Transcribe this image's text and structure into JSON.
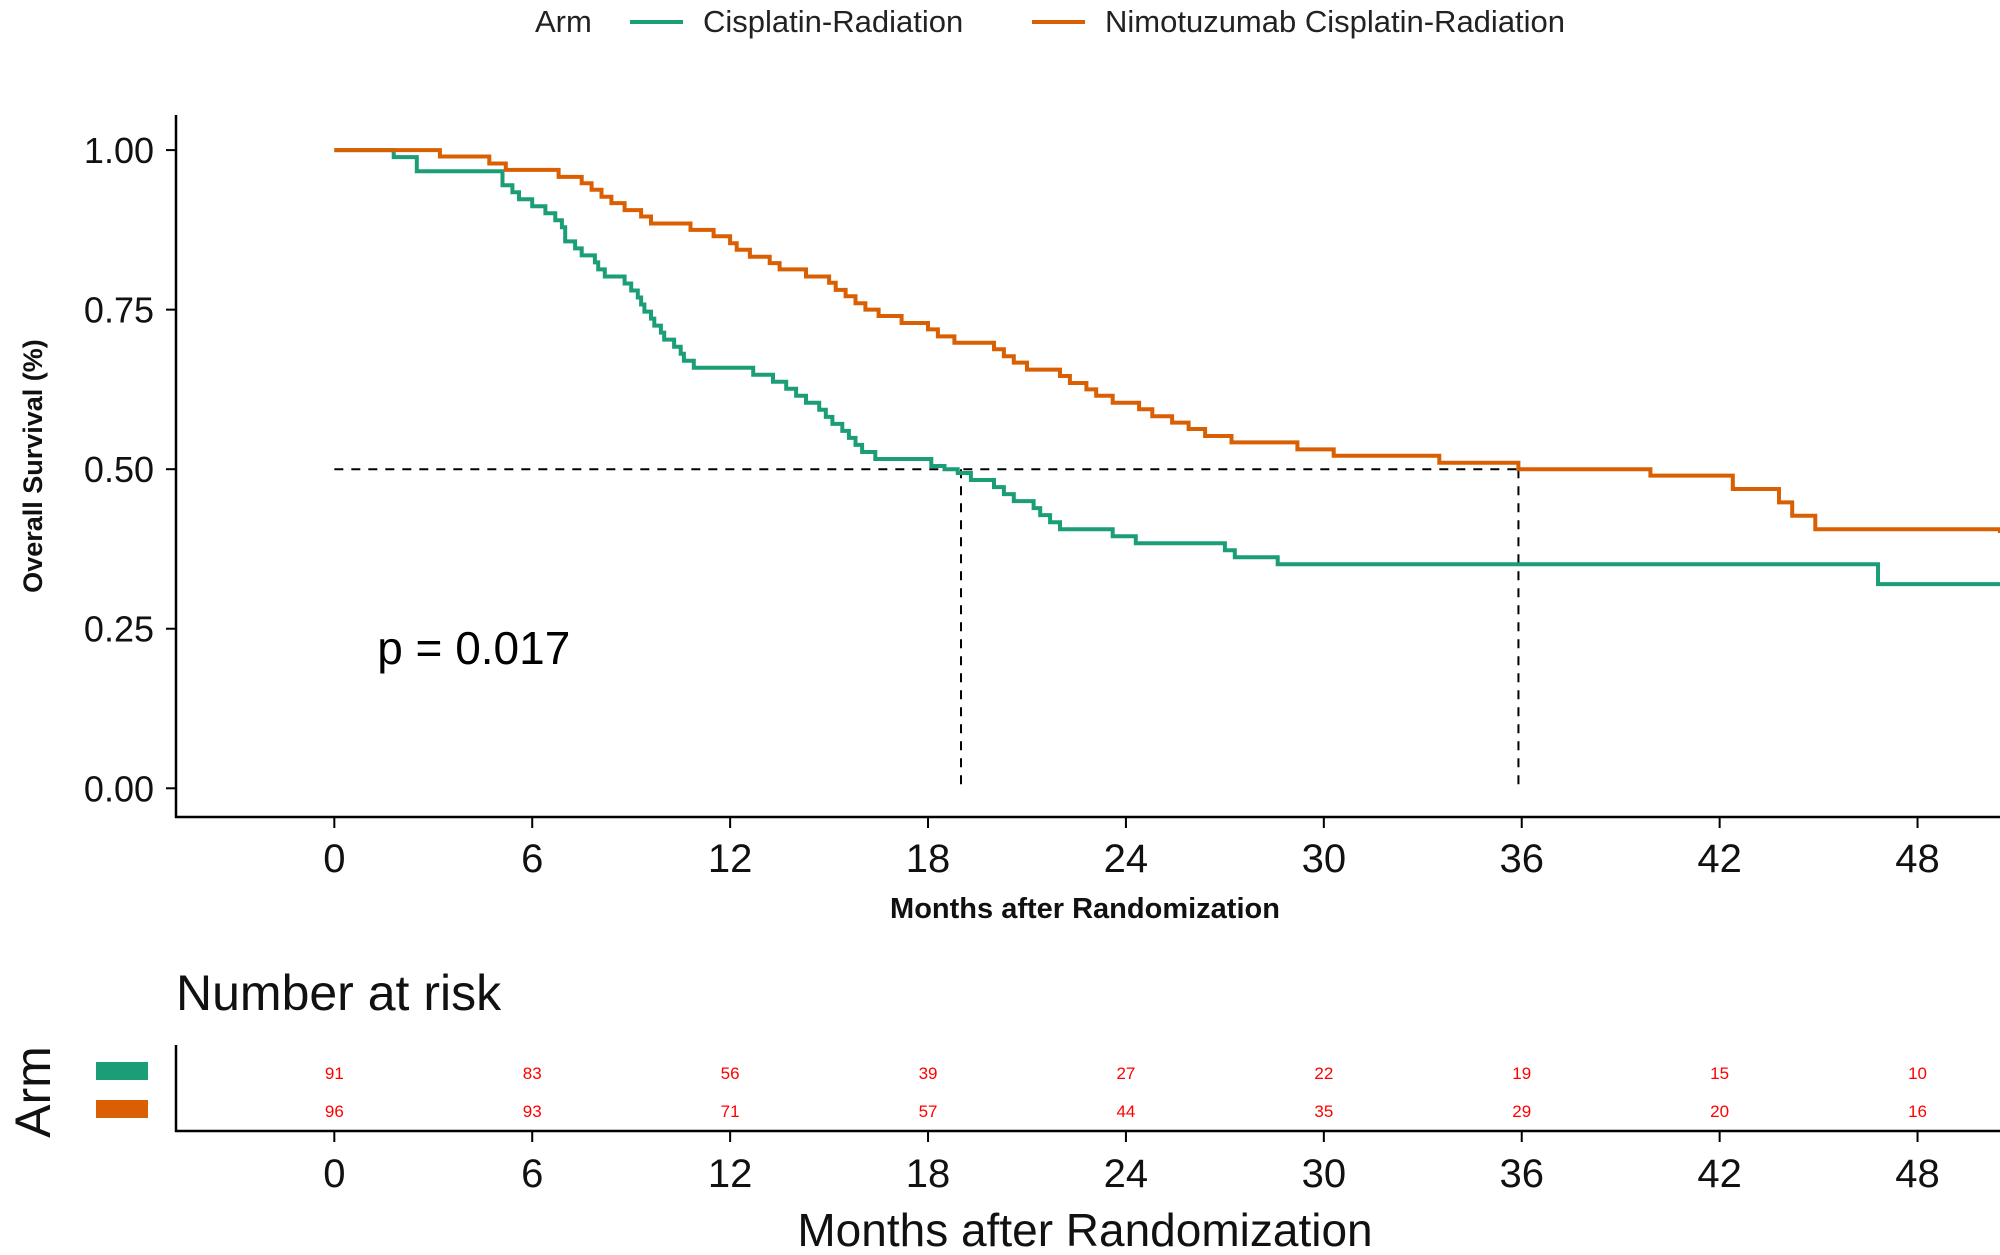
{
  "chart_data": {
    "type": "line",
    "subtype": "kaplan-meier",
    "legend": {
      "title": "Arm",
      "placement": "top",
      "entries": [
        "Cisplatin-Radiation",
        "Nimotuzumab Cisplatin-Radiation"
      ]
    },
    "colors": {
      "cisplatin": "#1b9e77",
      "nimotuzumab": "#d95f02",
      "risk_text": "#ff0000"
    },
    "ylabel": "Overall Survival (%)",
    "xlabel": "Months after Randomization",
    "xlim": [
      -4.8,
      50.5
    ],
    "ylim": [
      -0.045,
      1.055
    ],
    "x_ticks": [
      0,
      6,
      12,
      18,
      24,
      30,
      36,
      42,
      48
    ],
    "y_ticks": [
      0.0,
      0.25,
      0.5,
      0.75,
      1.0
    ],
    "y_tick_labels": [
      "0.00",
      "0.25",
      "0.50",
      "0.75",
      "1.00"
    ],
    "grid": false,
    "annotation": "p = 0.017",
    "annotation_pos": [
      1.3,
      0.195
    ],
    "median_reference": {
      "y": 0.5,
      "medians": [
        19.0,
        35.9
      ]
    },
    "series": [
      {
        "name": "Cisplatin-Radiation",
        "points": [
          [
            0,
            1.0
          ],
          [
            1.8,
            0.989
          ],
          [
            2.5,
            0.967
          ],
          [
            5.1,
            0.945
          ],
          [
            5.4,
            0.934
          ],
          [
            5.6,
            0.923
          ],
          [
            6.0,
            0.912
          ],
          [
            6.4,
            0.901
          ],
          [
            6.7,
            0.89
          ],
          [
            6.9,
            0.879
          ],
          [
            7.0,
            0.857
          ],
          [
            7.3,
            0.846
          ],
          [
            7.5,
            0.835
          ],
          [
            7.9,
            0.824
          ],
          [
            8.0,
            0.813
          ],
          [
            8.2,
            0.802
          ],
          [
            8.8,
            0.791
          ],
          [
            9.0,
            0.78
          ],
          [
            9.2,
            0.769
          ],
          [
            9.3,
            0.758
          ],
          [
            9.4,
            0.747
          ],
          [
            9.6,
            0.736
          ],
          [
            9.7,
            0.725
          ],
          [
            9.9,
            0.714
          ],
          [
            10.0,
            0.703
          ],
          [
            10.3,
            0.692
          ],
          [
            10.5,
            0.681
          ],
          [
            10.6,
            0.67
          ],
          [
            10.9,
            0.659
          ],
          [
            12.7,
            0.648
          ],
          [
            13.3,
            0.637
          ],
          [
            13.7,
            0.626
          ],
          [
            14.0,
            0.615
          ],
          [
            14.3,
            0.604
          ],
          [
            14.7,
            0.593
          ],
          [
            14.9,
            0.582
          ],
          [
            15.1,
            0.571
          ],
          [
            15.4,
            0.56
          ],
          [
            15.6,
            0.549
          ],
          [
            15.8,
            0.538
          ],
          [
            16.0,
            0.527
          ],
          [
            16.4,
            0.516
          ],
          [
            18.1,
            0.505
          ],
          [
            18.5,
            0.5
          ],
          [
            18.9,
            0.494
          ],
          [
            19.3,
            0.483
          ],
          [
            20.0,
            0.472
          ],
          [
            20.3,
            0.461
          ],
          [
            20.6,
            0.45
          ],
          [
            21.2,
            0.439
          ],
          [
            21.4,
            0.428
          ],
          [
            21.7,
            0.417
          ],
          [
            22.0,
            0.406
          ],
          [
            23.6,
            0.395
          ],
          [
            24.3,
            0.384
          ],
          [
            27.0,
            0.373
          ],
          [
            27.3,
            0.362
          ],
          [
            28.6,
            0.351
          ],
          [
            46.8,
            0.32
          ],
          [
            50.5,
            0.32
          ]
        ]
      },
      {
        "name": "Nimotuzumab Cisplatin-Radiation",
        "points": [
          [
            0,
            1.0
          ],
          [
            3.2,
            0.99
          ],
          [
            4.7,
            0.979
          ],
          [
            5.2,
            0.969
          ],
          [
            6.8,
            0.958
          ],
          [
            7.5,
            0.948
          ],
          [
            7.8,
            0.938
          ],
          [
            8.1,
            0.927
          ],
          [
            8.4,
            0.917
          ],
          [
            8.8,
            0.906
          ],
          [
            9.3,
            0.896
          ],
          [
            9.6,
            0.885
          ],
          [
            10.8,
            0.875
          ],
          [
            11.5,
            0.865
          ],
          [
            12.0,
            0.854
          ],
          [
            12.2,
            0.844
          ],
          [
            12.6,
            0.833
          ],
          [
            13.2,
            0.823
          ],
          [
            13.5,
            0.813
          ],
          [
            14.3,
            0.802
          ],
          [
            15.0,
            0.792
          ],
          [
            15.2,
            0.781
          ],
          [
            15.5,
            0.771
          ],
          [
            15.8,
            0.76
          ],
          [
            16.1,
            0.75
          ],
          [
            16.5,
            0.74
          ],
          [
            17.2,
            0.729
          ],
          [
            18.0,
            0.719
          ],
          [
            18.3,
            0.708
          ],
          [
            18.8,
            0.698
          ],
          [
            20.0,
            0.688
          ],
          [
            20.3,
            0.677
          ],
          [
            20.6,
            0.667
          ],
          [
            21.0,
            0.656
          ],
          [
            22.0,
            0.646
          ],
          [
            22.3,
            0.635
          ],
          [
            22.8,
            0.625
          ],
          [
            23.1,
            0.615
          ],
          [
            23.6,
            0.604
          ],
          [
            24.4,
            0.594
          ],
          [
            24.8,
            0.583
          ],
          [
            25.4,
            0.573
          ],
          [
            25.9,
            0.563
          ],
          [
            26.4,
            0.552
          ],
          [
            27.2,
            0.542
          ],
          [
            29.2,
            0.531
          ],
          [
            30.3,
            0.521
          ],
          [
            33.5,
            0.51
          ],
          [
            35.9,
            0.5
          ],
          [
            39.9,
            0.49
          ],
          [
            42.4,
            0.469
          ],
          [
            43.8,
            0.448
          ],
          [
            44.2,
            0.427
          ],
          [
            44.9,
            0.406
          ],
          [
            50.5,
            0.4
          ]
        ]
      }
    ],
    "risk_table": {
      "title": "Number at risk",
      "ylabel": "Arm",
      "xlabel": "Months after Randomization",
      "x_ticks": [
        0,
        6,
        12,
        18,
        24,
        30,
        36,
        42,
        48
      ],
      "rows": [
        {
          "arm": "Cisplatin-Radiation",
          "values": [
            91,
            83,
            56,
            39,
            27,
            22,
            19,
            15,
            10
          ]
        },
        {
          "arm": "Nimotuzumab Cisplatin-Radiation",
          "values": [
            96,
            93,
            71,
            57,
            44,
            35,
            29,
            20,
            16
          ]
        }
      ]
    }
  }
}
